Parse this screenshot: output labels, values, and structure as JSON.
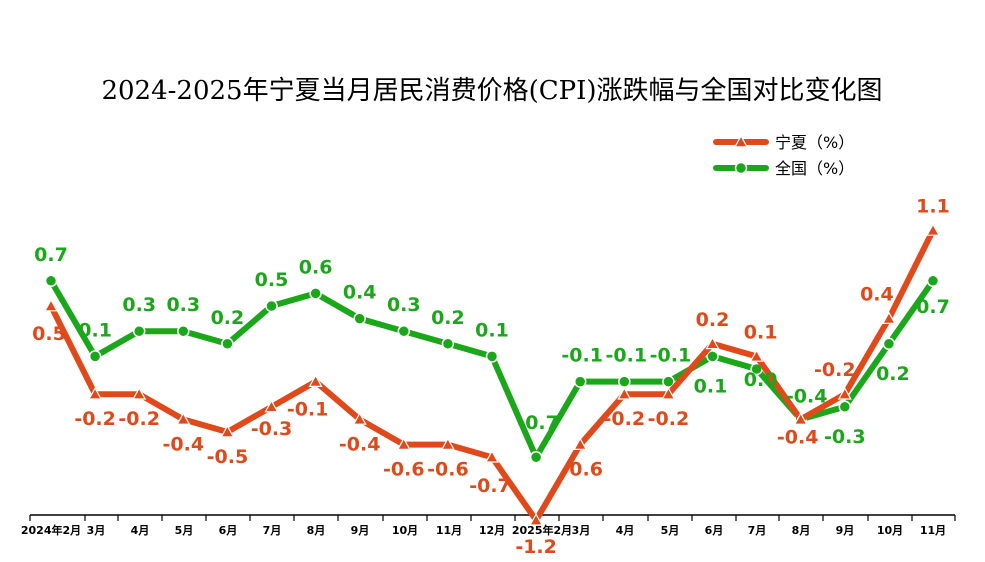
{
  "chart_data": {
    "type": "line",
    "title": "2024-2025年宁夏当月居民消费价格(CPI)涨跌幅与全国对比变化图",
    "xlabel": "",
    "ylabel": "",
    "categories": [
      "2024年2月",
      "3月",
      "4月",
      "5月",
      "6月",
      "7月",
      "8月",
      "9月",
      "10月",
      "11月",
      "12月",
      "2025年2月",
      "3月",
      "4月",
      "5月",
      "6月",
      "7月",
      "8月",
      "9月",
      "10月",
      "11月"
    ],
    "series": [
      {
        "name": "宁夏（%）",
        "color": "#e04a1a",
        "marker": "triangle",
        "values": [
          0.5,
          -0.2,
          -0.2,
          -0.4,
          -0.5,
          -0.3,
          -0.1,
          -0.4,
          -0.6,
          -0.6,
          -0.7,
          -1.2,
          -0.6,
          -0.2,
          -0.2,
          0.2,
          0.1,
          -0.4,
          -0.2,
          0.4,
          1.1
        ],
        "labels": [
          "0.5",
          "-0.2",
          "-0.2",
          "-0.4",
          "-0.5",
          "-0.3",
          "-0.1",
          "-0.4",
          "-0.6",
          "-0.6",
          "-0.7",
          "-1.2",
          "-0.6",
          "-0.2",
          "-0.2",
          "0.2",
          "0.1",
          "-0.4",
          "-0.2",
          "0.4",
          "1.1"
        ]
      },
      {
        "name": "全国（%）",
        "color": "#1aa81a",
        "marker": "circle",
        "values": [
          0.7,
          0.1,
          0.3,
          0.3,
          0.2,
          0.5,
          0.6,
          0.4,
          0.3,
          0.2,
          0.1,
          -0.7,
          -0.1,
          -0.1,
          -0.1,
          0.1,
          0.0,
          -0.4,
          -0.3,
          0.2,
          0.7
        ],
        "labels": [
          "0.7",
          "0.1",
          "0.3",
          "0.3",
          "0.2",
          "0.5",
          "0.6",
          "0.4",
          "0.3",
          "0.2",
          "0.1",
          "-0.7",
          "-0.1",
          "-0.1",
          "-0.1",
          "0.1",
          "0.0",
          "-0.4",
          "-0.3",
          "0.2",
          "0.7"
        ]
      }
    ],
    "ylim": [
      -1.5,
      1.3
    ],
    "grid": false,
    "legend": "top-right"
  }
}
